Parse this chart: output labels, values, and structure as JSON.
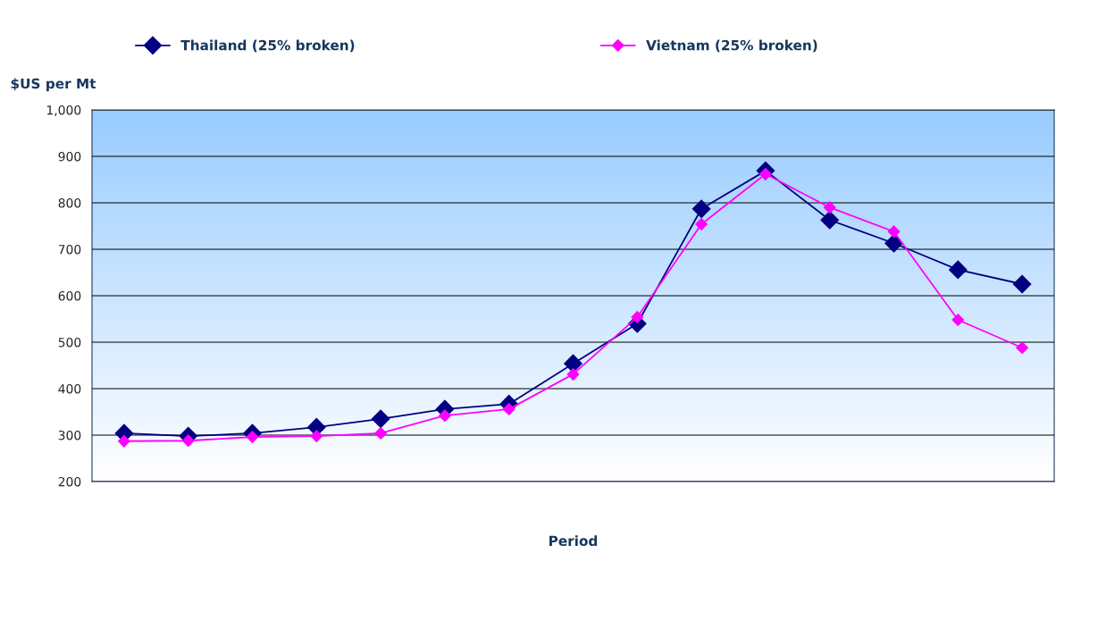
{
  "chart_data": {
    "type": "line",
    "xlabel": "Period",
    "ylabel": "$US per Mt",
    "categories": [
      null,
      null,
      null,
      null,
      null,
      null,
      null,
      null,
      null,
      null,
      null,
      null,
      null,
      null,
      null
    ],
    "series": [
      {
        "name": "Thailand (25% broken)",
        "color": "#000080",
        "values": [
          304,
          298,
          304,
          317,
          335,
          356,
          367,
          454,
          540,
          787,
          869,
          763,
          713,
          656,
          625
        ]
      },
      {
        "name": "Vietnam (25% broken)",
        "color": "#ff00ff",
        "values": [
          287,
          288,
          296,
          298,
          304,
          342,
          356,
          431,
          554,
          754,
          862,
          790,
          738,
          548,
          488
        ]
      }
    ],
    "ylim": [
      200,
      1000
    ],
    "yticks": [
      200,
      300,
      400,
      500,
      600,
      700,
      800,
      900,
      {
        "value": 1000,
        "label": "1,000"
      }
    ],
    "grid": "y",
    "legend": "top",
    "marker": "diamond",
    "line_style": "solid"
  }
}
